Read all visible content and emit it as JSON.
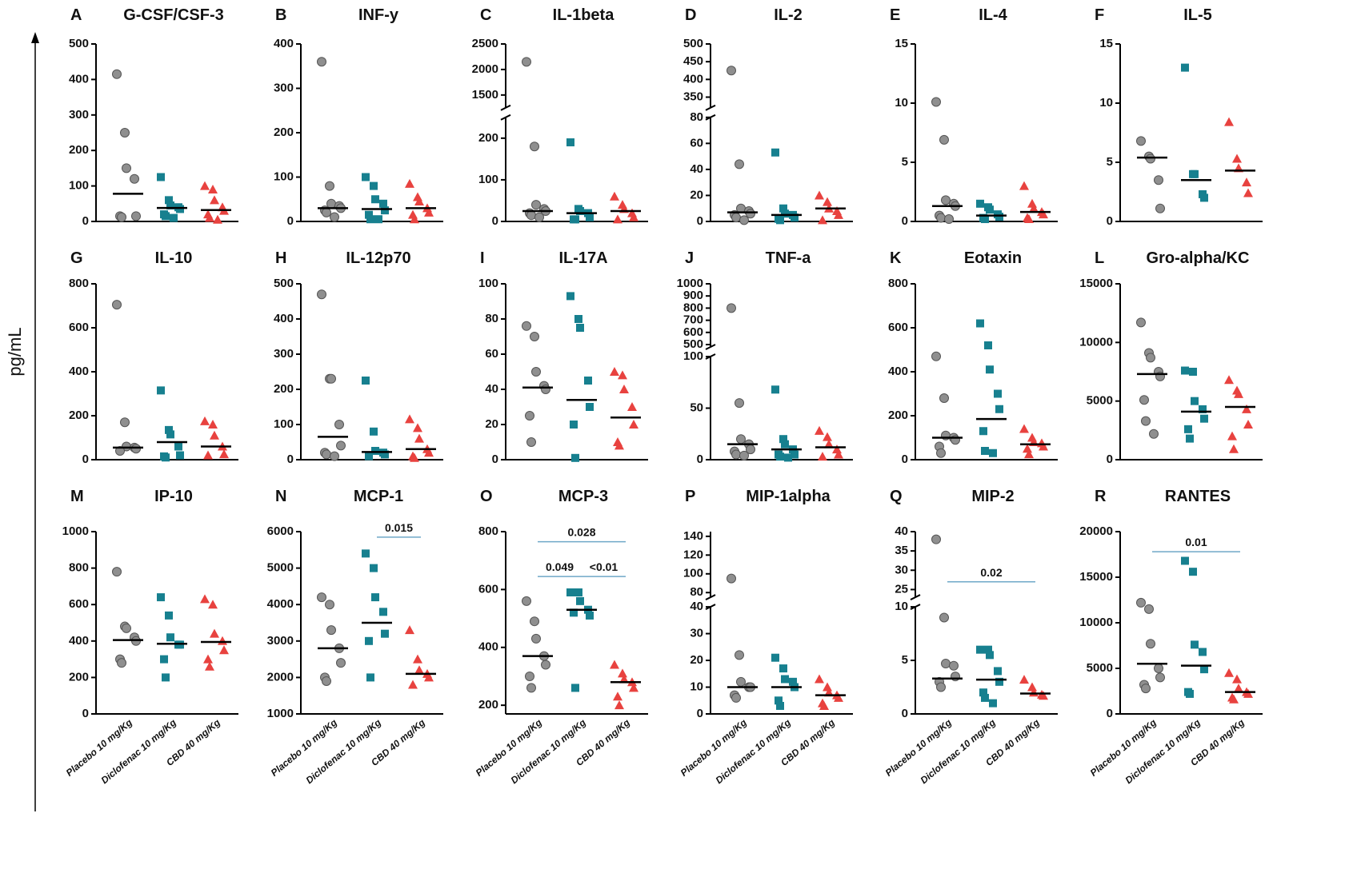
{
  "y_label": "pg/mL",
  "colors": [
    "#8f8f8f",
    "#17808f",
    "#e8423f"
  ],
  "markers": [
    "circle",
    "square",
    "triangle"
  ],
  "chart_data": [
    {
      "type": "scatter",
      "panel": "A",
      "title": "G-CSF/CSF-3",
      "ylim": [
        0,
        500
      ],
      "yticks": [
        0,
        100,
        200,
        300,
        400,
        500
      ],
      "groups": [
        [
          415,
          250,
          150,
          120,
          15,
          15,
          12
        ],
        [
          125,
          60,
          45,
          40,
          35,
          20,
          15,
          10
        ],
        [
          100,
          90,
          60,
          40,
          30,
          20,
          10,
          5
        ]
      ],
      "medians": [
        78,
        38,
        32
      ]
    },
    {
      "type": "scatter",
      "panel": "B",
      "title": "INF-y",
      "ylim": [
        0,
        400
      ],
      "yticks": [
        0,
        100,
        200,
        300,
        400
      ],
      "groups": [
        [
          360,
          80,
          40,
          35,
          30,
          25,
          20,
          10
        ],
        [
          100,
          80,
          50,
          40,
          25,
          15,
          5,
          5
        ],
        [
          85,
          55,
          45,
          30,
          20,
          15,
          5
        ]
      ],
      "medians": [
        30,
        28,
        30
      ]
    },
    {
      "type": "scatter",
      "panel": "C",
      "title": "IL-1beta",
      "segments": [
        {
          "ylim": [
            0,
            250
          ],
          "yticks": [
            0,
            100,
            200
          ]
        },
        {
          "ylim": [
            1250,
            2500
          ],
          "yticks": [
            1500,
            2000,
            2500
          ]
        }
      ],
      "groups": [
        [
          2150,
          180,
          40,
          30,
          25,
          20,
          15,
          10
        ],
        [
          190,
          30,
          25,
          20,
          10,
          5,
          5
        ],
        [
          60,
          40,
          30,
          20,
          10,
          5
        ]
      ],
      "medians": [
        25,
        20,
        25
      ]
    },
    {
      "type": "scatter",
      "panel": "D",
      "title": "IL-2",
      "segments": [
        {
          "ylim": [
            0,
            80
          ],
          "yticks": [
            0,
            20,
            40,
            60,
            80
          ]
        },
        {
          "ylim": [
            320,
            500
          ],
          "yticks": [
            350,
            400,
            450,
            500
          ]
        }
      ],
      "groups": [
        [
          425,
          44,
          10,
          8,
          6,
          5,
          3,
          1
        ],
        [
          53,
          10,
          6,
          5,
          3,
          2,
          1
        ],
        [
          20,
          15,
          10,
          8,
          5,
          1
        ]
      ],
      "medians": [
        7,
        5,
        10
      ]
    },
    {
      "type": "scatter",
      "panel": "E",
      "title": "IL-4",
      "ylim": [
        0,
        15
      ],
      "yticks": [
        0,
        5,
        10,
        15
      ],
      "groups": [
        [
          10.1,
          6.9,
          1.8,
          1.5,
          1.3,
          0.5,
          0.3,
          0.2
        ],
        [
          1.5,
          1.2,
          1,
          0.6,
          0.4,
          0.3,
          0.2
        ],
        [
          3,
          1.5,
          1.1,
          0.8,
          0.6,
          0.3,
          0.2
        ]
      ],
      "medians": [
        1.3,
        0.5,
        0.8
      ]
    },
    {
      "type": "scatter",
      "panel": "F",
      "title": "IL-5",
      "ylim": [
        0,
        15
      ],
      "yticks": [
        0,
        5,
        10,
        15
      ],
      "groups": [
        [
          6.8,
          5.5,
          5.3,
          3.5,
          1.1
        ],
        [
          13,
          4,
          4,
          2.3,
          2
        ],
        [
          8.4,
          5.3,
          4.5,
          3.3,
          2.4
        ]
      ],
      "medians": [
        5.4,
        3.5,
        4.3
      ]
    },
    {
      "type": "scatter",
      "panel": "G",
      "title": "IL-10",
      "ylim": [
        0,
        800
      ],
      "yticks": [
        0,
        200,
        400,
        600,
        800
      ],
      "groups": [
        [
          705,
          170,
          60,
          55,
          50,
          40
        ],
        [
          315,
          135,
          115,
          60,
          20,
          15,
          10
        ],
        [
          175,
          160,
          110,
          60,
          25,
          20
        ]
      ],
      "medians": [
        55,
        80,
        60
      ]
    },
    {
      "type": "scatter",
      "panel": "H",
      "title": "IL-12p70",
      "ylim": [
        0,
        500
      ],
      "yticks": [
        0,
        100,
        200,
        300,
        400,
        500
      ],
      "groups": [
        [
          470,
          230,
          230,
          100,
          40,
          20,
          15,
          10
        ],
        [
          225,
          80,
          25,
          20,
          15,
          10
        ],
        [
          115,
          90,
          60,
          30,
          20,
          10,
          5
        ]
      ],
      "medians": [
        65,
        22,
        30
      ]
    },
    {
      "type": "scatter",
      "panel": "I",
      "title": "IL-17A",
      "ylim": [
        0,
        100
      ],
      "yticks": [
        0,
        20,
        40,
        60,
        80,
        100
      ],
      "groups": [
        [
          76,
          70,
          50,
          42,
          40,
          25,
          10
        ],
        [
          93,
          80,
          75,
          45,
          30,
          20,
          1
        ],
        [
          50,
          48,
          40,
          30,
          20,
          10,
          8
        ]
      ],
      "medians": [
        41,
        34,
        24
      ]
    },
    {
      "type": "scatter",
      "panel": "J",
      "title": "TNF-a",
      "segments": [
        {
          "ylim": [
            0,
            100
          ],
          "yticks": [
            0,
            50,
            100
          ]
        },
        {
          "ylim": [
            480,
            1000
          ],
          "yticks": [
            500,
            600,
            700,
            800,
            900,
            1000
          ]
        }
      ],
      "groups": [
        [
          800,
          55,
          20,
          15,
          10,
          8,
          5,
          4
        ],
        [
          68,
          20,
          15,
          10,
          5,
          5,
          3,
          2
        ],
        [
          28,
          22,
          15,
          10,
          5,
          3
        ]
      ],
      "medians": [
        15,
        10,
        12
      ]
    },
    {
      "type": "scatter",
      "panel": "K",
      "title": "Eotaxin",
      "ylim": [
        0,
        800
      ],
      "yticks": [
        0,
        200,
        400,
        600,
        800
      ],
      "groups": [
        [
          470,
          280,
          110,
          100,
          90,
          60,
          30
        ],
        [
          620,
          520,
          410,
          300,
          230,
          130,
          40,
          30
        ],
        [
          140,
          100,
          80,
          75,
          60,
          50,
          25
        ]
      ],
      "medians": [
        100,
        185,
        70
      ]
    },
    {
      "type": "scatter",
      "panel": "L",
      "title": "Gro-alpha/KC",
      "ylim": [
        0,
        15000
      ],
      "yticks": [
        0,
        5000,
        10000,
        15000
      ],
      "groups": [
        [
          11700,
          9100,
          8700,
          7500,
          7100,
          5100,
          3300,
          2200
        ],
        [
          7600,
          7500,
          5000,
          4300,
          3500,
          2600,
          1800
        ],
        [
          6800,
          5900,
          5600,
          4300,
          3000,
          2000,
          900
        ]
      ],
      "medians": [
        7300,
        4100,
        4500
      ]
    },
    {
      "type": "scatter",
      "panel": "M",
      "title": "IP-10",
      "ylim": [
        0,
        1000
      ],
      "yticks": [
        0,
        200,
        400,
        600,
        800,
        1000
      ],
      "categories": [
        "Placebo 10 mg/Kg",
        "Diclofenac 10 mg/Kg",
        "CBD 40 mg/Kg"
      ],
      "groups": [
        [
          780,
          480,
          470,
          420,
          400,
          300,
          280
        ],
        [
          640,
          540,
          420,
          380,
          380,
          300,
          200
        ],
        [
          630,
          600,
          440,
          400,
          350,
          300,
          260
        ]
      ],
      "medians": [
        405,
        385,
        395
      ]
    },
    {
      "type": "scatter",
      "panel": "N",
      "title": "MCP-1",
      "ylim": [
        1000,
        6000
      ],
      "yticks": [
        1000,
        2000,
        3000,
        4000,
        5000,
        6000
      ],
      "categories": [
        "Placebo 10 mg/Kg",
        "Diclofenac 10 mg/Kg",
        "CBD 40 mg/Kg"
      ],
      "groups": [
        [
          4200,
          4000,
          3300,
          2800,
          2400,
          2000,
          1900
        ],
        [
          5400,
          5000,
          4200,
          3800,
          3200,
          3000,
          2000
        ],
        [
          3300,
          2500,
          2200,
          2100,
          2000,
          1800
        ]
      ],
      "medians": [
        2800,
        3500,
        2100
      ],
      "annotations": [
        {
          "text": "0.015",
          "from": 1,
          "to": 2,
          "y": 5850
        }
      ]
    },
    {
      "type": "scatter",
      "panel": "O",
      "title": "MCP-3",
      "ylim": [
        170,
        800
      ],
      "yticks": [
        200,
        400,
        600,
        800
      ],
      "categories": [
        "Placebo 10 mg/Kg",
        "Diclofenac 10 mg/Kg",
        "CBD 40 mg/Kg"
      ],
      "groups": [
        [
          560,
          490,
          430,
          370,
          340,
          300,
          260
        ],
        [
          590,
          590,
          560,
          530,
          510,
          520,
          260
        ],
        [
          340,
          310,
          290,
          280,
          260,
          230,
          200
        ]
      ],
      "medians": [
        370,
        530,
        280
      ],
      "annotations": [
        {
          "text": "0.028",
          "from": 0,
          "to": 2,
          "y": 765
        },
        {
          "text": "0.049",
          "from": 0,
          "to": 1,
          "y": 645
        },
        {
          "text": "<0.01",
          "from": 1,
          "to": 2,
          "y": 645
        }
      ]
    },
    {
      "type": "scatter",
      "panel": "P",
      "title": "MIP-1alpha",
      "segments": [
        {
          "ylim": [
            0,
            40
          ],
          "yticks": [
            0,
            10,
            20,
            30,
            40
          ]
        },
        {
          "ylim": [
            75,
            145
          ],
          "yticks": [
            80,
            100,
            120,
            140
          ]
        }
      ],
      "categories": [
        "Placebo 10 mg/Kg",
        "Diclofenac 10 mg/Kg",
        "CBD 40 mg/Kg"
      ],
      "groups": [
        [
          95,
          22,
          12,
          10,
          10,
          7,
          6
        ],
        [
          21,
          17,
          13,
          12,
          10,
          5,
          3
        ],
        [
          13,
          10,
          8,
          7,
          6,
          4,
          3
        ]
      ],
      "medians": [
        10,
        10,
        7
      ]
    },
    {
      "type": "scatter",
      "panel": "Q",
      "title": "MIP-2",
      "segments": [
        {
          "ylim": [
            0,
            10
          ],
          "yticks": [
            0,
            5,
            10
          ]
        },
        {
          "ylim": [
            23,
            40
          ],
          "yticks": [
            25,
            30,
            35,
            40
          ]
        }
      ],
      "categories": [
        "Placebo 10 mg/Kg",
        "Diclofenac 10 mg/Kg",
        "CBD 40 mg/Kg"
      ],
      "groups": [
        [
          38,
          9,
          4.7,
          4.5,
          3.5,
          3,
          2.5
        ],
        [
          6,
          6,
          5.5,
          4,
          3,
          2,
          1.5,
          1
        ],
        [
          3.2,
          2.5,
          2,
          1.8,
          1.7
        ]
      ],
      "medians": [
        3.3,
        3.2,
        1.9
      ],
      "annotations": [
        {
          "text": "0.02",
          "from": 0,
          "to": 2,
          "y": 27
        }
      ]
    },
    {
      "type": "scatter",
      "panel": "R",
      "title": "RANTES",
      "ylim": [
        0,
        20000
      ],
      "yticks": [
        0,
        5000,
        10000,
        15000,
        20000
      ],
      "categories": [
        "Placebo 10 mg/Kg",
        "Diclofenac 10 mg/Kg",
        "CBD 40 mg/Kg"
      ],
      "groups": [
        [
          12200,
          11500,
          7700,
          5000,
          4000,
          3200,
          2800
        ],
        [
          16800,
          15600,
          7600,
          6800,
          4900,
          2400,
          2200
        ],
        [
          4500,
          3800,
          2800,
          2400,
          2200,
          1800,
          1600
        ]
      ],
      "medians": [
        5500,
        5300,
        2400
      ],
      "annotations": [
        {
          "text": "0.01",
          "from": 0,
          "to": 2,
          "y": 17800
        }
      ]
    }
  ]
}
